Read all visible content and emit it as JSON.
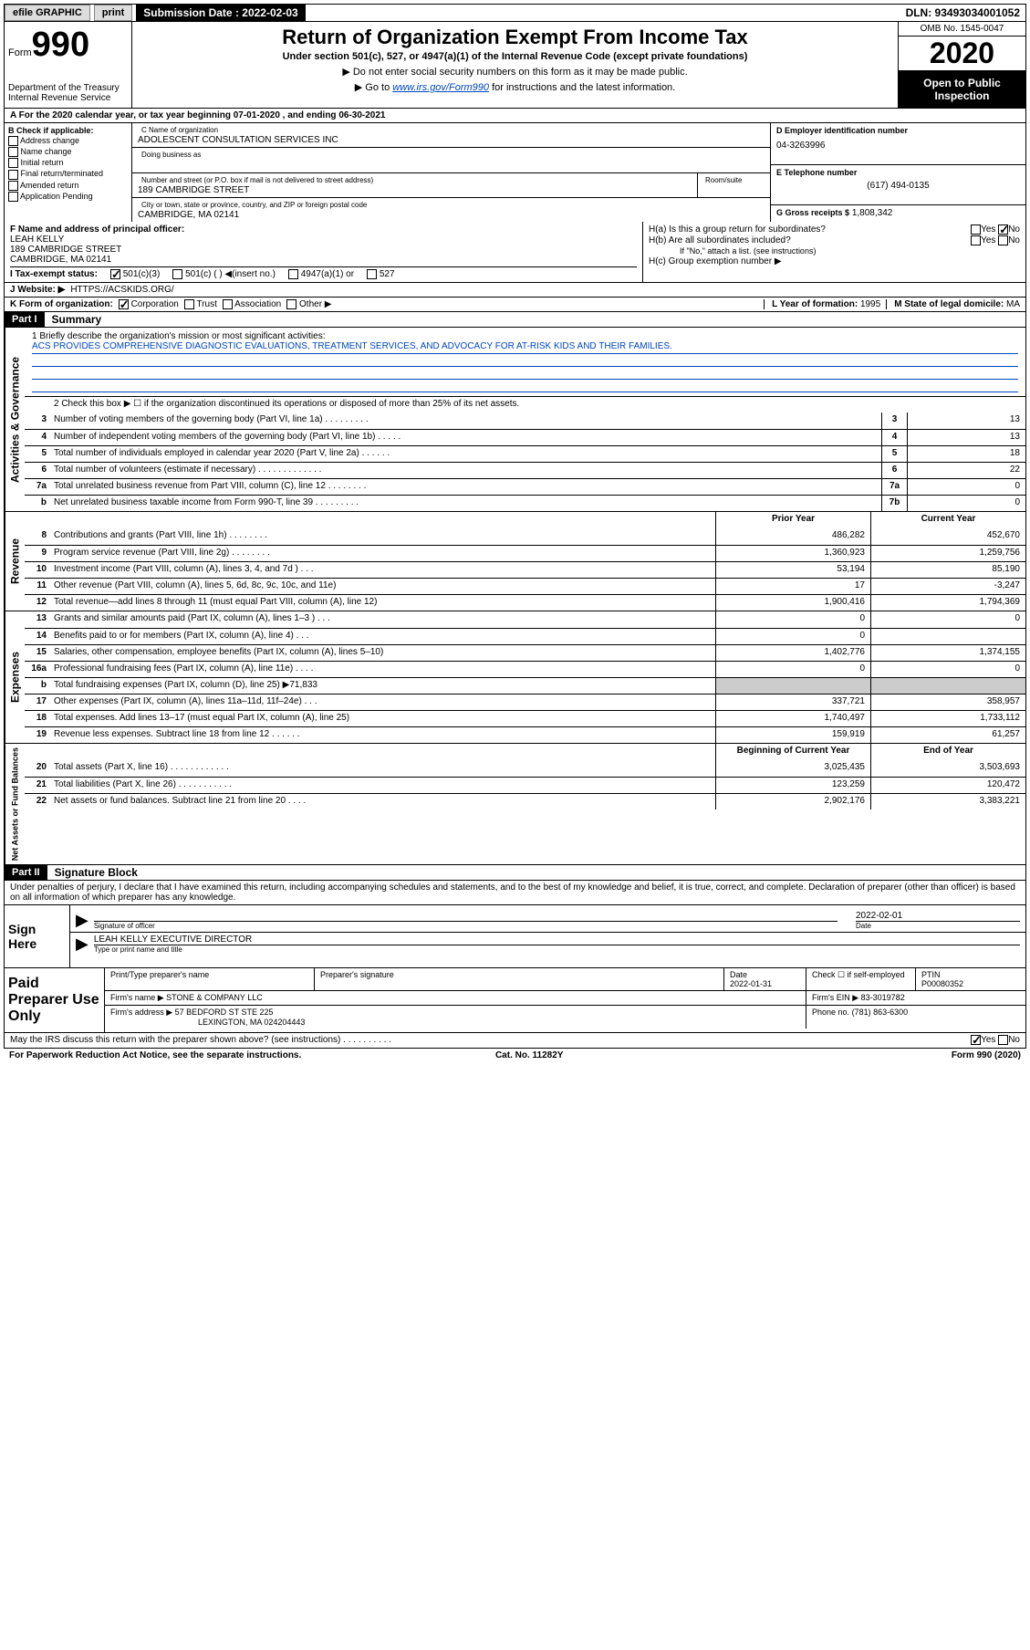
{
  "top": {
    "efile": "efile GRAPHIC",
    "print": "print",
    "sub_label": "Submission Date :",
    "sub_date": "2022-02-03",
    "dln": "DLN: 93493034001052"
  },
  "hdr": {
    "form_word": "Form",
    "form_num": "990",
    "title": "Return of Organization Exempt From Income Tax",
    "sub": "Under section 501(c), 527, or 4947(a)(1) of the Internal Revenue Code (except private foundations)",
    "arrow1": "▶ Do not enter social security numbers on this form as it may be made public.",
    "arrow2_pre": "▶ Go to ",
    "arrow2_link": "www.irs.gov/Form990",
    "arrow2_post": " for instructions and the latest information.",
    "dept": "Department of the Treasury\nInternal Revenue Service",
    "omb": "OMB No. 1545-0047",
    "year": "2020",
    "open": "Open to Public Inspection"
  },
  "lineA": "A For the 2020 calendar year, or tax year beginning 07-01-2020     , and ending 06-30-2021",
  "B": {
    "hdr": "B Check if applicable:",
    "items": [
      "Address change",
      "Name change",
      "Initial return",
      "Final return/terminated",
      "Amended return",
      "Application Pending"
    ]
  },
  "C": {
    "name_lbl": "C Name of organization",
    "name": "ADOLESCENT CONSULTATION SERVICES INC",
    "dba_lbl": "Doing business as",
    "addr_lbl": "Number and street (or P.O. box if mail is not delivered to street address)",
    "room_lbl": "Room/suite",
    "addr": "189 CAMBRIDGE STREET",
    "city_lbl": "City or town, state or province, country, and ZIP or foreign postal code",
    "city": "CAMBRIDGE, MA  02141"
  },
  "D": {
    "lbl": "D Employer identification number",
    "val": "04-3263996"
  },
  "E": {
    "lbl": "E Telephone number",
    "val": "(617) 494-0135"
  },
  "G": {
    "lbl": "G Gross receipts $",
    "val": "1,808,342"
  },
  "F": {
    "lbl": "F  Name and address of principal officer:",
    "name": "LEAH KELLY",
    "addr": "189 CAMBRIDGE STREET",
    "city": "CAMBRIDGE, MA  02141"
  },
  "H": {
    "a": "H(a)  Is this a group return for subordinates?",
    "b": "H(b)  Are all subordinates included?",
    "b_note": "If \"No,\" attach a list. (see instructions)",
    "c": "H(c)  Group exemption number ▶",
    "yes": "Yes",
    "no": "No"
  },
  "I": {
    "lbl": "I    Tax-exempt status:",
    "opts": [
      "501(c)(3)",
      "501(c) (  ) ◀(insert no.)",
      "4947(a)(1) or",
      "527"
    ]
  },
  "J": {
    "lbl": "J    Website: ▶",
    "val": "HTTPS://ACSKIDS.ORG/"
  },
  "K": {
    "lbl": "K Form of organization:",
    "opts": [
      "Corporation",
      "Trust",
      "Association",
      "Other ▶"
    ]
  },
  "L": {
    "lbl": "L Year of formation:",
    "val": "1995"
  },
  "M": {
    "lbl": "M State of legal domicile:",
    "val": "MA"
  },
  "partI": {
    "hdr": "Part I",
    "title": "Summary"
  },
  "summary": {
    "l1": "1   Briefly describe the organization's mission or most significant activities:",
    "l1_text": "ACS PROVIDES COMPREHENSIVE DIAGNOSTIC EVALUATIONS, TREATMENT SERVICES, AND ADVOCACY FOR AT-RISK KIDS AND THEIR FAMILIES.",
    "l2": "2   Check this box ▶ ☐  if the organization discontinued its operations or disposed of more than 25% of its net assets.",
    "rows_ag": [
      {
        "n": "3",
        "d": "Number of voting members of the governing body (Part VI, line 1a)   .    .    .    .    .    .    .    .    .",
        "b": "3",
        "v": "13"
      },
      {
        "n": "4",
        "d": "Number of independent voting members of the governing body (Part VI, line 1b)   .    .    .    .    .",
        "b": "4",
        "v": "13"
      },
      {
        "n": "5",
        "d": "Total number of individuals employed in calendar year 2020 (Part V, line 2a)   .    .    .    .    .    .",
        "b": "5",
        "v": "18"
      },
      {
        "n": "6",
        "d": "Total number of volunteers (estimate if necessary)   .    .    .    .    .    .    .    .    .    .    .    .    .",
        "b": "6",
        "v": "22"
      },
      {
        "n": "7a",
        "d": "Total unrelated business revenue from Part VIII, column (C), line 12   .    .    .    .    .    .    .    .",
        "b": "7a",
        "v": "0"
      },
      {
        "n": "b",
        "d": "Net unrelated business taxable income from Form 990-T, line 39   .    .    .    .    .    .    .    .    .",
        "b": "7b",
        "v": "0"
      }
    ],
    "col_prior": "Prior Year",
    "col_curr": "Current Year",
    "rev": [
      {
        "n": "8",
        "d": "Contributions and grants (Part VIII, line 1h)   .    .    .    .    .    .    .    .",
        "p": "486,282",
        "c": "452,670"
      },
      {
        "n": "9",
        "d": "Program service revenue (Part VIII, line 2g)   .    .    .    .    .    .    .    .",
        "p": "1,360,923",
        "c": "1,259,756"
      },
      {
        "n": "10",
        "d": "Investment income (Part VIII, column (A), lines 3, 4, and 7d )   .    .    .",
        "p": "53,194",
        "c": "85,190"
      },
      {
        "n": "11",
        "d": "Other revenue (Part VIII, column (A), lines 5, 6d, 8c, 9c, 10c, and 11e)",
        "p": "17",
        "c": "-3,247"
      },
      {
        "n": "12",
        "d": "Total revenue—add lines 8 through 11 (must equal Part VIII, column (A), line 12)",
        "p": "1,900,416",
        "c": "1,794,369"
      }
    ],
    "exp": [
      {
        "n": "13",
        "d": "Grants and similar amounts paid (Part IX, column (A), lines 1–3 )   .    .    .",
        "p": "0",
        "c": "0"
      },
      {
        "n": "14",
        "d": "Benefits paid to or for members (Part IX, column (A), line 4)   .    .    .",
        "p": "0",
        "c": ""
      },
      {
        "n": "15",
        "d": "Salaries, other compensation, employee benefits (Part IX, column (A), lines 5–10)",
        "p": "1,402,776",
        "c": "1,374,155"
      },
      {
        "n": "16a",
        "d": "Professional fundraising fees (Part IX, column (A), line 11e)   .    .    .    .",
        "p": "0",
        "c": "0"
      },
      {
        "n": "b",
        "d": "Total fundraising expenses (Part IX, column (D), line 25) ▶71,833",
        "p": "",
        "c": "",
        "shade": true
      },
      {
        "n": "17",
        "d": "Other expenses (Part IX, column (A), lines 11a–11d, 11f–24e)   .    .    .",
        "p": "337,721",
        "c": "358,957"
      },
      {
        "n": "18",
        "d": "Total expenses. Add lines 13–17 (must equal Part IX, column (A), line 25)",
        "p": "1,740,497",
        "c": "1,733,112"
      },
      {
        "n": "19",
        "d": "Revenue less expenses. Subtract line 18 from line 12   .    .    .    .    .    .",
        "p": "159,919",
        "c": "61,257"
      }
    ],
    "col_beg": "Beginning of Current Year",
    "col_end": "End of Year",
    "net": [
      {
        "n": "20",
        "d": "Total assets (Part X, line 16)   .    .    .    .    .    .    .    .    .    .    .    .",
        "p": "3,025,435",
        "c": "3,503,693"
      },
      {
        "n": "21",
        "d": "Total liabilities (Part X, line 26)   .    .    .    .    .    .    .    .    .    .    .",
        "p": "123,259",
        "c": "120,472"
      },
      {
        "n": "22",
        "d": "Net assets or fund balances. Subtract line 21 from line 20   .    .    .    .",
        "p": "2,902,176",
        "c": "3,383,221"
      }
    ]
  },
  "vtabs": {
    "ag": "Activities & Governance",
    "rev": "Revenue",
    "exp": "Expenses",
    "net": "Net Assets or Fund Balances"
  },
  "partII": {
    "hdr": "Part II",
    "title": "Signature Block"
  },
  "penalties": "Under penalties of perjury, I declare that I have examined this return, including accompanying schedules and statements, and to the best of my knowledge and belief, it is true, correct, and complete. Declaration of preparer (other than officer) is based on all information of which preparer has any knowledge.",
  "sign": {
    "here": "Sign Here",
    "sig_officer": "Signature of officer",
    "date": "Date",
    "date_val": "2022-02-01",
    "name": "LEAH KELLY EXECUTIVE DIRECTOR",
    "type_lbl": "Type or print name and title"
  },
  "prep": {
    "hdr": "Paid Preparer Use Only",
    "print_lbl": "Print/Type preparer's name",
    "sig_lbl": "Preparer's signature",
    "date_lbl": "Date",
    "date_val": "2022-01-31",
    "check_lbl": "Check ☐ if self-employed",
    "ptin_lbl": "PTIN",
    "ptin": "P00080352",
    "firm_name_lbl": "Firm's name     ▶",
    "firm_name": "STONE & COMPANY LLC",
    "firm_ein_lbl": "Firm's EIN ▶",
    "firm_ein": "83-3019782",
    "firm_addr_lbl": "Firm's address ▶",
    "firm_addr1": "57 BEDFORD ST STE 225",
    "firm_addr2": "LEXINGTON, MA  024204443",
    "phone_lbl": "Phone no.",
    "phone": "(781) 863-6300"
  },
  "discuss": "May the IRS discuss this return with the preparer shown above? (see instructions)   .    .    .    .    .    .    .    .    .    .",
  "footer": {
    "pra": "For Paperwork Reduction Act Notice, see the separate instructions.",
    "cat": "Cat. No. 11282Y",
    "form": "Form 990 (2020)"
  }
}
